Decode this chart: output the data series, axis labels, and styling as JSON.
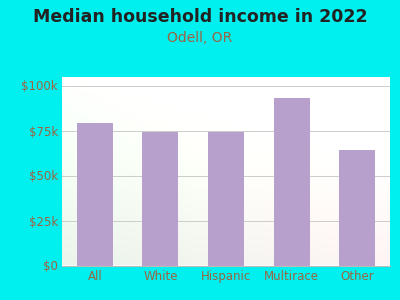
{
  "title": "Median household income in 2022",
  "subtitle": "Odell, OR",
  "categories": [
    "All",
    "White",
    "Hispanic",
    "Multirace",
    "Other"
  ],
  "values": [
    79000,
    74000,
    74000,
    93000,
    64000
  ],
  "bar_color": "#b8a0cc",
  "background_color": "#00efef",
  "title_color": "#222222",
  "subtitle_color": "#996644",
  "tick_label_color": "#996644",
  "ytick_labels": [
    "$0",
    "$25k",
    "$50k",
    "$75k",
    "$100k"
  ],
  "ytick_values": [
    0,
    25000,
    50000,
    75000,
    100000
  ],
  "ylim": [
    0,
    105000
  ],
  "title_fontsize": 12.5,
  "subtitle_fontsize": 10,
  "tick_fontsize": 8.5,
  "bar_width": 0.55
}
